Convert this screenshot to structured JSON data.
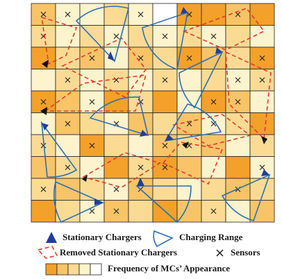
{
  "legend": {
    "items": [
      "Stationary Chargers",
      "Charging Range",
      "Removed Stationary Chargers",
      "Sensors",
      "Frequency of MCs’ Appearance"
    ]
  }
}
